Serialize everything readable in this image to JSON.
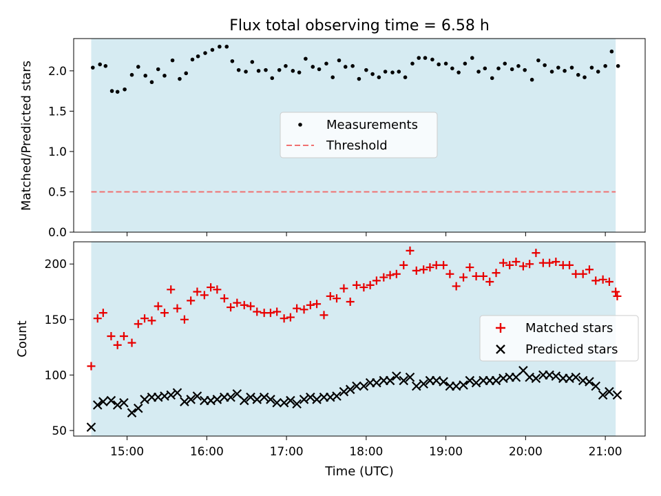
{
  "chart_data": [
    {
      "type": "scatter",
      "title": "Flux total observing time = 6.58 h",
      "xlabel": "",
      "ylabel": "Matched/Predicted stars",
      "xlim": [
        14.33,
        21.5
      ],
      "ylim": [
        0.0,
        2.4
      ],
      "ytick_values": [
        0.0,
        0.5,
        1.0,
        1.5,
        2.0
      ],
      "ytick_labels": [
        "0.0",
        "0.5",
        "1.0",
        "1.5",
        "2.0"
      ],
      "shaded_span": [
        14.55,
        21.13
      ],
      "series": [
        {
          "name": "Measurements",
          "marker": "dot",
          "color": "#000000",
          "x": [
            14.57,
            14.66,
            14.73,
            14.81,
            14.88,
            14.97,
            15.06,
            15.14,
            15.23,
            15.31,
            15.39,
            15.47,
            15.57,
            15.66,
            15.74,
            15.82,
            15.89,
            15.98,
            16.07,
            16.16,
            16.25,
            16.32,
            16.4,
            16.49,
            16.57,
            16.65,
            16.74,
            16.82,
            16.91,
            16.99,
            17.08,
            17.16,
            17.24,
            17.33,
            17.41,
            17.5,
            17.58,
            17.66,
            17.74,
            17.83,
            17.91,
            18.0,
            18.08,
            18.16,
            18.24,
            18.33,
            18.41,
            18.49,
            18.58,
            18.66,
            18.74,
            18.83,
            18.91,
            19.0,
            19.08,
            19.16,
            19.24,
            19.33,
            19.41,
            19.49,
            19.58,
            19.66,
            19.74,
            19.83,
            19.91,
            19.99,
            20.08,
            20.16,
            20.24,
            20.33,
            20.41,
            20.49,
            20.58,
            20.66,
            20.74,
            20.83,
            20.91,
            21.0,
            21.08,
            21.16
          ],
          "y": [
            2.04,
            2.08,
            2.06,
            1.75,
            1.74,
            1.77,
            1.95,
            2.05,
            1.94,
            1.86,
            2.02,
            1.94,
            2.13,
            1.9,
            1.97,
            2.14,
            2.18,
            2.22,
            2.26,
            2.3,
            2.3,
            2.12,
            2.01,
            1.99,
            2.11,
            2.0,
            2.01,
            1.91,
            2.01,
            2.06,
            2.0,
            1.98,
            2.15,
            2.05,
            2.02,
            2.09,
            1.92,
            2.13,
            2.05,
            2.06,
            1.9,
            2.01,
            1.96,
            1.92,
            1.99,
            1.98,
            1.99,
            1.92,
            2.09,
            2.16,
            2.16,
            2.14,
            2.08,
            2.09,
            2.03,
            1.98,
            2.09,
            2.16,
            1.99,
            2.03,
            1.91,
            2.03,
            2.09,
            2.02,
            2.06,
            2.01,
            1.89,
            2.13,
            2.07,
            1.99,
            2.04,
            2.0,
            2.04,
            1.95,
            1.92,
            2.04,
            1.99,
            2.06,
            2.24,
            2.06
          ]
        },
        {
          "name": "Threshold",
          "marker": "dashed-line",
          "color": "#f07070",
          "x": [
            14.55,
            21.13
          ],
          "y": [
            0.5,
            0.5
          ]
        }
      ],
      "legend": [
        "Measurements",
        "Threshold"
      ],
      "legend_location": "center"
    },
    {
      "type": "scatter",
      "title": "",
      "xlabel": "Time (UTC)",
      "ylabel": "Count",
      "xlim": [
        14.33,
        21.5
      ],
      "ylim": [
        45,
        220
      ],
      "ytick_values": [
        50,
        100,
        150,
        200
      ],
      "ytick_labels": [
        "50",
        "100",
        "150",
        "200"
      ],
      "xtick_values": [
        15,
        16,
        17,
        18,
        19,
        20,
        21
      ],
      "xtick_labels": [
        "15:00",
        "16:00",
        "17:00",
        "18:00",
        "19:00",
        "20:00",
        "21:00"
      ],
      "shaded_span": [
        14.55,
        21.13
      ],
      "series": [
        {
          "name": "Matched stars",
          "marker": "plus",
          "color": "#e80000",
          "x": [
            14.55,
            14.63,
            14.7,
            14.8,
            14.88,
            14.96,
            15.06,
            15.14,
            15.22,
            15.31,
            15.39,
            15.47,
            15.55,
            15.63,
            15.72,
            15.8,
            15.88,
            15.97,
            16.05,
            16.13,
            16.22,
            16.3,
            16.38,
            16.47,
            16.55,
            16.63,
            16.72,
            16.8,
            16.88,
            16.97,
            17.05,
            17.13,
            17.22,
            17.3,
            17.38,
            17.47,
            17.55,
            17.63,
            17.72,
            17.8,
            17.88,
            17.97,
            18.05,
            18.13,
            18.22,
            18.3,
            18.38,
            18.47,
            18.55,
            18.63,
            18.72,
            18.8,
            18.88,
            18.97,
            19.05,
            19.13,
            19.22,
            19.3,
            19.38,
            19.47,
            19.55,
            19.63,
            19.72,
            19.8,
            19.88,
            19.97,
            20.05,
            20.13,
            20.22,
            20.3,
            20.38,
            20.47,
            20.55,
            20.63,
            20.72,
            20.8,
            20.88,
            20.97,
            21.05,
            21.13
          ],
          "y": [
            108,
            151,
            156,
            135,
            127,
            135,
            129,
            146,
            151,
            149,
            162,
            156,
            177,
            160,
            150,
            167,
            175,
            172,
            179,
            177,
            169,
            161,
            165,
            163,
            162,
            157,
            156,
            156,
            157,
            151,
            152,
            160,
            159,
            163,
            164,
            154,
            171,
            169,
            178,
            166,
            181,
            179,
            181,
            185,
            188,
            190,
            191,
            199,
            212,
            194,
            195,
            197,
            199,
            199,
            191,
            180,
            188,
            197,
            189,
            189,
            184,
            192,
            201,
            199,
            202,
            198,
            200,
            210,
            201,
            201,
            202,
            199,
            199,
            191,
            191,
            195,
            185,
            186,
            184,
            175
          ],
          "extra_x": [
            21.15
          ],
          "extra_y": [
            171
          ]
        },
        {
          "name": "Predicted stars",
          "marker": "x",
          "color": "#000000",
          "x": [
            14.55,
            14.63,
            14.7,
            14.8,
            14.88,
            14.96,
            15.06,
            15.14,
            15.22,
            15.31,
            15.39,
            15.47,
            15.55,
            15.63,
            15.72,
            15.8,
            15.88,
            15.97,
            16.05,
            16.13,
            16.22,
            16.3,
            16.38,
            16.47,
            16.55,
            16.63,
            16.72,
            16.8,
            16.88,
            16.97,
            17.05,
            17.13,
            17.22,
            17.3,
            17.38,
            17.47,
            17.55,
            17.63,
            17.72,
            17.8,
            17.88,
            17.97,
            18.05,
            18.13,
            18.22,
            18.3,
            18.38,
            18.47,
            18.55,
            18.63,
            18.72,
            18.8,
            18.88,
            18.97,
            19.05,
            19.13,
            19.22,
            19.3,
            19.38,
            19.47,
            19.55,
            19.63,
            19.72,
            19.8,
            19.88,
            19.97,
            20.05,
            20.13,
            20.22,
            20.3,
            20.38,
            20.47,
            20.55,
            20.63,
            20.72,
            20.8,
            20.88,
            20.97,
            21.05,
            21.15
          ],
          "y": [
            53,
            73,
            76,
            77,
            73,
            75,
            66,
            70,
            78,
            80,
            80,
            81,
            82,
            84,
            76,
            78,
            81,
            77,
            77,
            78,
            80,
            80,
            83,
            77,
            80,
            78,
            80,
            78,
            75,
            75,
            77,
            74,
            78,
            80,
            78,
            80,
            80,
            81,
            85,
            87,
            90,
            90,
            93,
            93,
            95,
            95,
            99,
            95,
            98,
            90,
            92,
            95,
            95,
            94,
            90,
            90,
            91,
            95,
            93,
            95,
            95,
            95,
            97,
            98,
            98,
            104,
            98,
            97,
            100,
            100,
            99,
            97,
            97,
            98,
            95,
            94,
            90,
            82,
            85,
            82
          ]
        }
      ],
      "legend": [
        "Matched stars",
        "Predicted stars"
      ],
      "legend_location": "center-right"
    }
  ]
}
